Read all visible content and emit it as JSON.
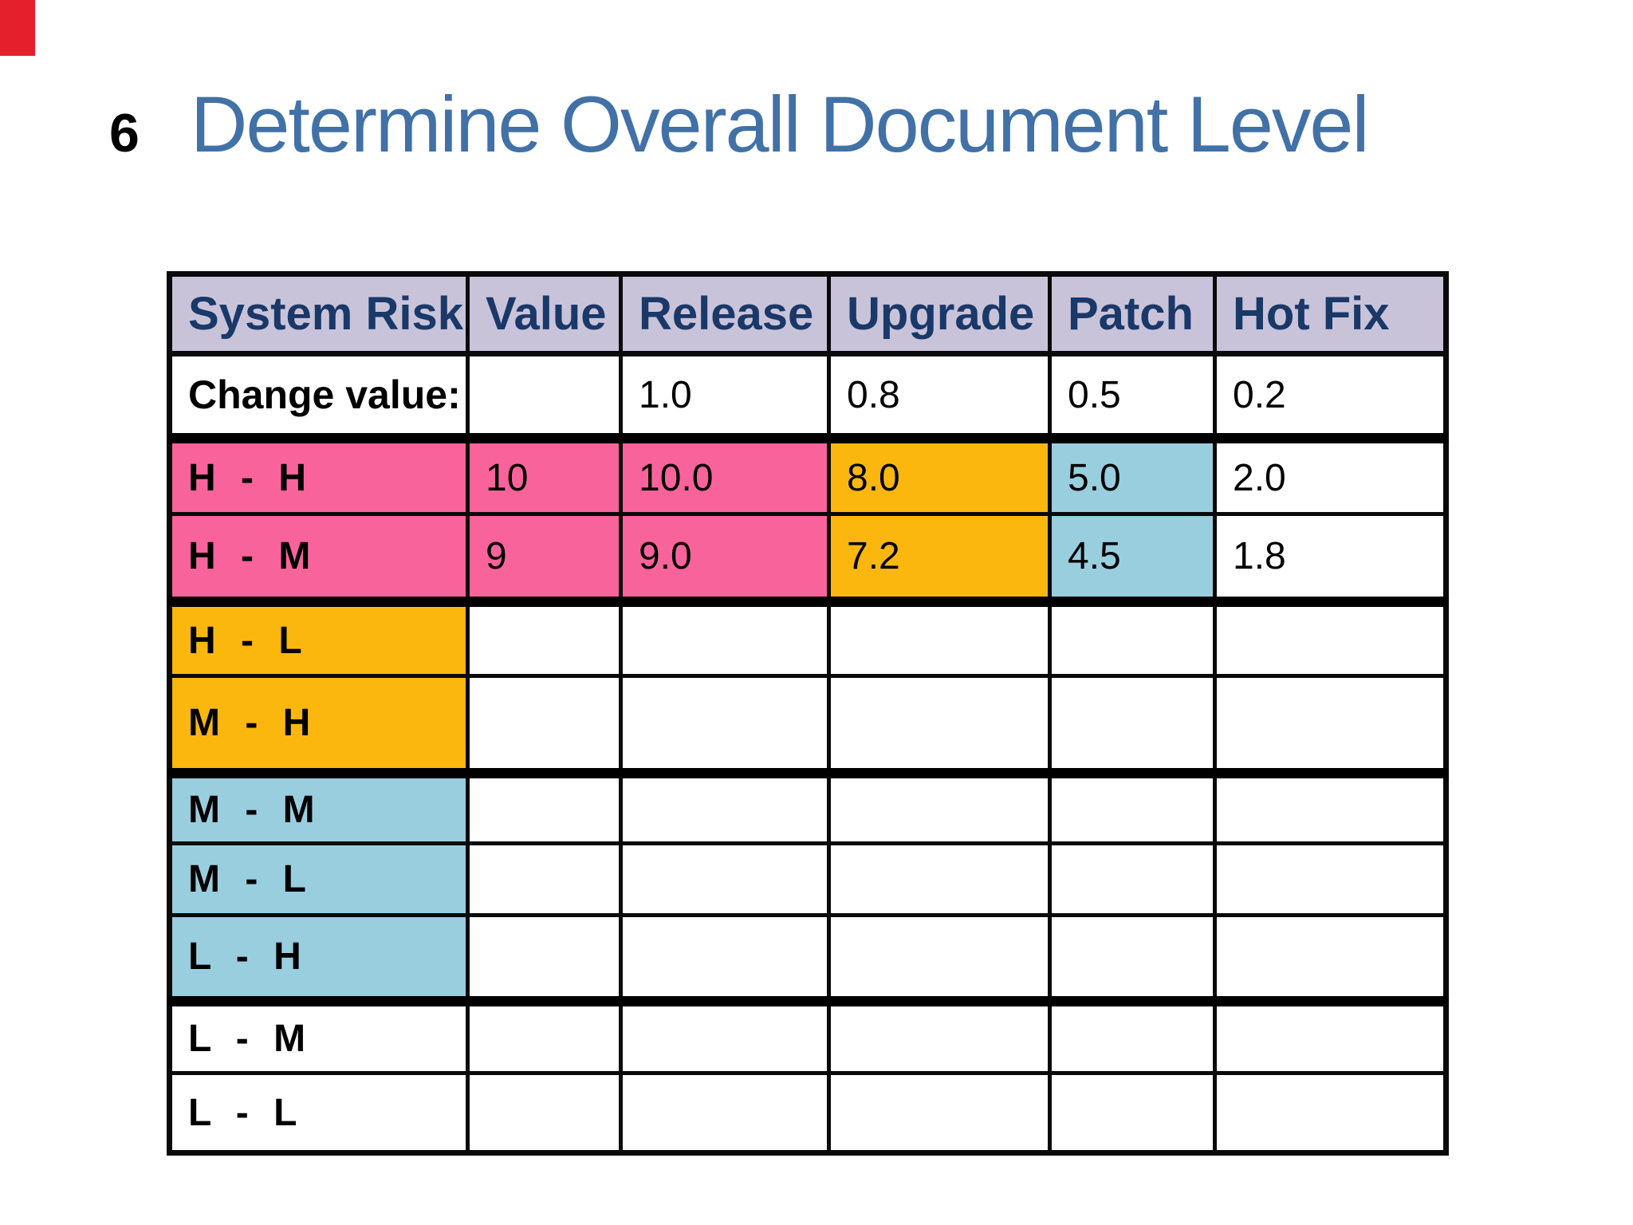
{
  "slide": {
    "number": "6",
    "title": "Determine Overall Document Level",
    "colors": {
      "title_text": "#4171A7",
      "accent_red": "#E4202C",
      "header_bg": "#C9C3DA",
      "header_text": "#1A3868",
      "pink": "#F9639B",
      "orange": "#FBB70E",
      "blue": "#99CEDF",
      "white": "#FFFFFF",
      "grid": "#0A0A0A"
    }
  },
  "table": {
    "columns": [
      "System Risk",
      "Value",
      "Release",
      "Upgrade",
      "Patch",
      "Hot Fix"
    ],
    "rows": [
      {
        "label": "Change value:",
        "values": [
          "",
          "1.0",
          "0.8",
          "0.5",
          "0.2"
        ],
        "label_bg": "white",
        "cell_bgs": [
          "white",
          "white",
          "white",
          "white",
          "white"
        ],
        "thick_bottom": true,
        "label_kind": "change"
      },
      {
        "label": "H - H",
        "values": [
          "10",
          "10.0",
          "8.0",
          "5.0",
          "2.0"
        ],
        "label_bg": "pink",
        "cell_bgs": [
          "pink",
          "pink",
          "orange",
          "blue",
          "white"
        ],
        "thick_bottom": false,
        "label_kind": "risk"
      },
      {
        "label": "H - M",
        "values": [
          "9",
          "9.0",
          "7.2",
          "4.5",
          "1.8"
        ],
        "label_bg": "pink",
        "cell_bgs": [
          "pink",
          "pink",
          "orange",
          "blue",
          "white"
        ],
        "thick_bottom": true,
        "label_kind": "risk"
      },
      {
        "label": "H - L",
        "values": [
          "",
          "",
          "",
          "",
          ""
        ],
        "label_bg": "orange",
        "cell_bgs": [
          "white",
          "white",
          "white",
          "white",
          "white"
        ],
        "thick_bottom": false,
        "label_kind": "risk"
      },
      {
        "label": "M - H",
        "values": [
          "",
          "",
          "",
          "",
          ""
        ],
        "label_bg": "orange",
        "cell_bgs": [
          "white",
          "white",
          "white",
          "white",
          "white"
        ],
        "thick_bottom": true,
        "label_kind": "risk"
      },
      {
        "label": "M - M",
        "values": [
          "",
          "",
          "",
          "",
          ""
        ],
        "label_bg": "blue",
        "cell_bgs": [
          "white",
          "white",
          "white",
          "white",
          "white"
        ],
        "thick_bottom": false,
        "label_kind": "risk"
      },
      {
        "label": "M - L",
        "values": [
          "",
          "",
          "",
          "",
          ""
        ],
        "label_bg": "blue",
        "cell_bgs": [
          "white",
          "white",
          "white",
          "white",
          "white"
        ],
        "thick_bottom": false,
        "label_kind": "risk"
      },
      {
        "label": "L - H",
        "values": [
          "",
          "",
          "",
          "",
          ""
        ],
        "label_bg": "blue",
        "cell_bgs": [
          "white",
          "white",
          "white",
          "white",
          "white"
        ],
        "thick_bottom": true,
        "label_kind": "risk"
      },
      {
        "label": "L - M",
        "values": [
          "",
          "",
          "",
          "",
          ""
        ],
        "label_bg": "white",
        "cell_bgs": [
          "white",
          "white",
          "white",
          "white",
          "white"
        ],
        "thick_bottom": false,
        "label_kind": "risk"
      },
      {
        "label": "L - L",
        "values": [
          "",
          "",
          "",
          "",
          ""
        ],
        "label_bg": "white",
        "cell_bgs": [
          "white",
          "white",
          "white",
          "white",
          "white"
        ],
        "thick_bottom": false,
        "label_kind": "risk"
      }
    ]
  }
}
